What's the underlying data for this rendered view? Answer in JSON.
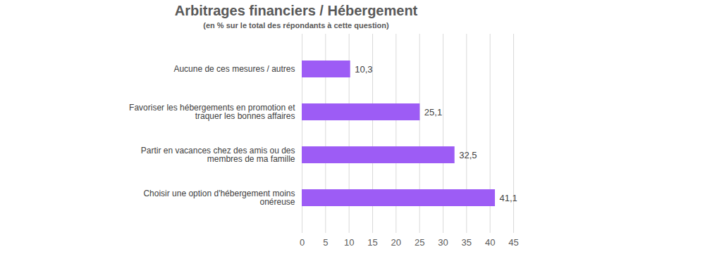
{
  "chart_data": {
    "type": "bar",
    "orientation": "horizontal",
    "title": "Arbitrages financiers / Hébergement",
    "subtitle": "(en % sur le total des répondants à cette question)",
    "categories": [
      "Aucune de ces mesures / autres",
      "Favoriser les hébergements en promotion et traquer les bonnes affaires",
      "Partir en vacances chez des amis ou des membres de ma famille",
      "Choisir une option d'hébergement moins onéreuse"
    ],
    "values": [
      10.3,
      25.1,
      32.5,
      41.1
    ],
    "value_labels": [
      "10,3",
      "25,1",
      "32,5",
      "41,1"
    ],
    "color": "#9d5cf5",
    "xlim": [
      0,
      45
    ],
    "xticks": [
      0,
      5,
      10,
      15,
      20,
      25,
      30,
      35,
      40,
      45
    ],
    "grid": true,
    "data_labels": true
  }
}
